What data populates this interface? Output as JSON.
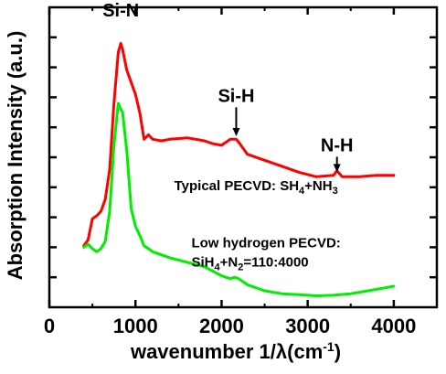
{
  "chart_data": {
    "type": "line",
    "xlabel": {
      "prefix": "wavenumber 1/λ(cm",
      "sup": "-1",
      "suffix": ")"
    },
    "ylabel": "Absorption Intensity (a.u.)",
    "xlim": [
      0,
      4500
    ],
    "xticks": [
      0,
      1000,
      2000,
      3000,
      4000
    ],
    "xtick_labels": [
      "0",
      "1000",
      "2000",
      "3000",
      "4000"
    ],
    "ylim": [
      0,
      10
    ],
    "yticks": [
      1,
      2,
      3,
      4,
      5,
      6,
      7,
      8,
      9
    ],
    "ytick_labels_shown": false,
    "grid": false,
    "series": [
      {
        "color": "#ff0000",
        "x": [
          400,
          450,
          500,
          550,
          600,
          650,
          700,
          750,
          800,
          830,
          850,
          900,
          950,
          1000,
          1050,
          1100,
          1150,
          1200,
          1300,
          1400,
          1600,
          1800,
          1900,
          2000,
          2100,
          2170,
          2200,
          2300,
          2500,
          2700,
          2900,
          3100,
          3300,
          3340,
          3400,
          3600,
          3800,
          4000
        ],
        "y": [
          2.05,
          2.25,
          2.95,
          3.05,
          3.2,
          3.6,
          4.6,
          6.8,
          8.5,
          8.8,
          8.6,
          7.9,
          7.5,
          7.1,
          6.5,
          5.6,
          5.75,
          5.6,
          5.55,
          5.6,
          5.65,
          5.55,
          5.45,
          5.4,
          5.6,
          5.6,
          5.5,
          5.1,
          4.9,
          4.7,
          4.5,
          4.35,
          4.4,
          4.55,
          4.35,
          4.35,
          4.4,
          4.4
        ]
      },
      {
        "color": "#00ee00",
        "x": [
          400,
          450,
          500,
          550,
          600,
          650,
          700,
          750,
          800,
          830,
          850,
          900,
          950,
          1000,
          1050,
          1100,
          1200,
          1400,
          1600,
          1800,
          2000,
          2100,
          2150,
          2200,
          2300,
          2500,
          2700,
          2900,
          3100,
          3300,
          3500,
          3700,
          3900,
          4000
        ],
        "y": [
          2.0,
          2.1,
          1.95,
          1.85,
          1.95,
          2.2,
          3.2,
          5.4,
          6.8,
          6.6,
          6.5,
          5.2,
          3.3,
          2.7,
          2.4,
          2.05,
          1.85,
          1.65,
          1.5,
          1.35,
          1.05,
          0.95,
          1.0,
          0.95,
          0.75,
          0.55,
          0.45,
          0.42,
          0.38,
          0.4,
          0.45,
          0.55,
          0.65,
          0.7
        ]
      }
    ],
    "annotations": {
      "si_n": {
        "text": "Si-N",
        "x": 830,
        "y": 9.7
      },
      "si_h": {
        "text": "Si-H",
        "x": 2170,
        "y": 6.85,
        "arrow_to_y": 5.7
      },
      "n_h": {
        "text": "N-H",
        "x": 3340,
        "y": 5.2,
        "arrow_to_y": 4.5
      },
      "typical": {
        "prefix": "Typical PECVD:  SH",
        "sub1": "4",
        "mid": "+NH",
        "sub2": "3",
        "x": 1450,
        "y": 3.9
      },
      "lowh_line1": {
        "text": "Low hydrogen PECVD:",
        "x": 1650,
        "y": 2.0
      },
      "lowh_line2": {
        "prefix": "SiH",
        "sub1": "4",
        "suffix": "+N",
        "sub2": "2",
        "suffix2": "=110:4000",
        "x": 1650,
        "y": 1.35
      }
    }
  }
}
